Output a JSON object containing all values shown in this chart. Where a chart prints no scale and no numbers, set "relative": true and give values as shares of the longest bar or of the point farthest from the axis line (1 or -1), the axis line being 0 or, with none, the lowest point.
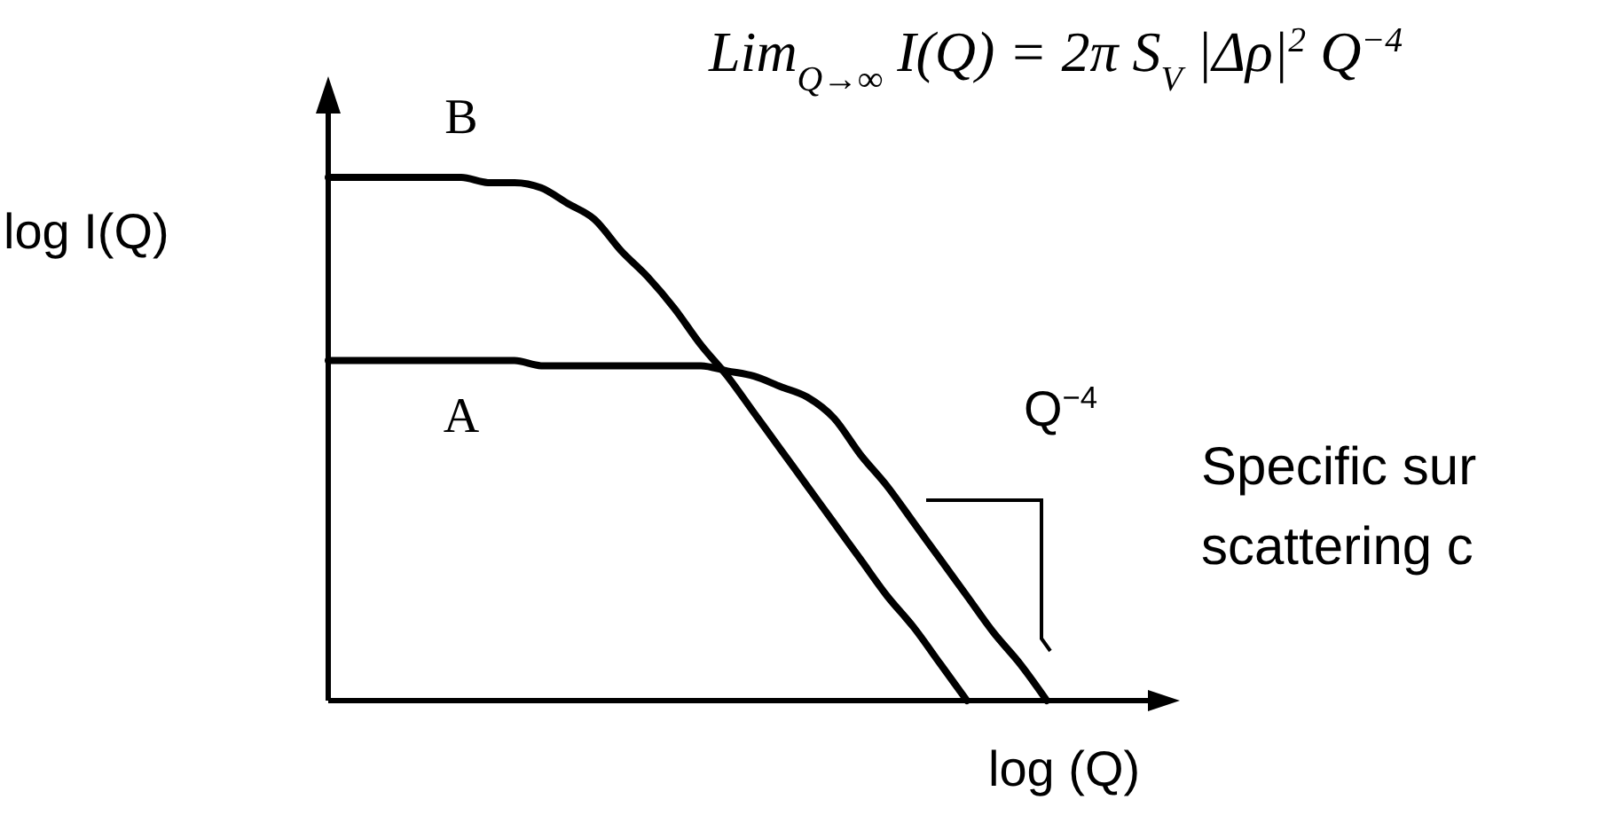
{
  "chart_data": {
    "type": "line",
    "relative": true,
    "title": "Lim$_{Q→∞}$ I(Q) = 2π S$_{V}$ |Δρ|$^{2}$ Q$^{−4}$",
    "xlabel": "log (Q)",
    "ylabel": "log I(Q)",
    "categories": [
      null,
      null,
      null,
      null,
      null,
      null,
      null,
      null,
      null,
      null,
      null,
      null,
      null,
      null,
      null,
      null,
      null,
      null,
      null,
      null,
      null,
      null,
      null,
      null,
      null,
      null,
      null,
      null,
      null,
      null,
      null,
      null,
      null
    ],
    "series": [
      {
        "name": "A",
        "color": "#000000",
        "values": [
          0.65,
          0.65,
          0.65,
          0.65,
          0.65,
          0.65,
          0.65,
          0.65,
          0.64,
          0.64,
          0.64,
          0.64,
          0.64,
          0.64,
          0.64,
          0.63,
          0.62,
          0.6,
          0.58,
          0.54,
          0.47,
          0.41,
          0.34,
          0.27,
          0.2,
          0.13,
          0.07,
          0,
          null,
          null,
          null,
          null,
          null
        ]
      },
      {
        "name": "B",
        "color": "#000000",
        "values": [
          1,
          1,
          1,
          1,
          1,
          1,
          0.99,
          0.99,
          0.98,
          0.95,
          0.92,
          0.86,
          0.81,
          0.75,
          0.68,
          0.62,
          0.55,
          0.48,
          0.41,
          0.34,
          0.27,
          0.2,
          0.14,
          0.07,
          0,
          null,
          null,
          null,
          null,
          null,
          null,
          null,
          null
        ]
      }
    ],
    "annotations": [
      "Q$^{−4}$",
      "Specific sur",
      "scattering c"
    ]
  }
}
